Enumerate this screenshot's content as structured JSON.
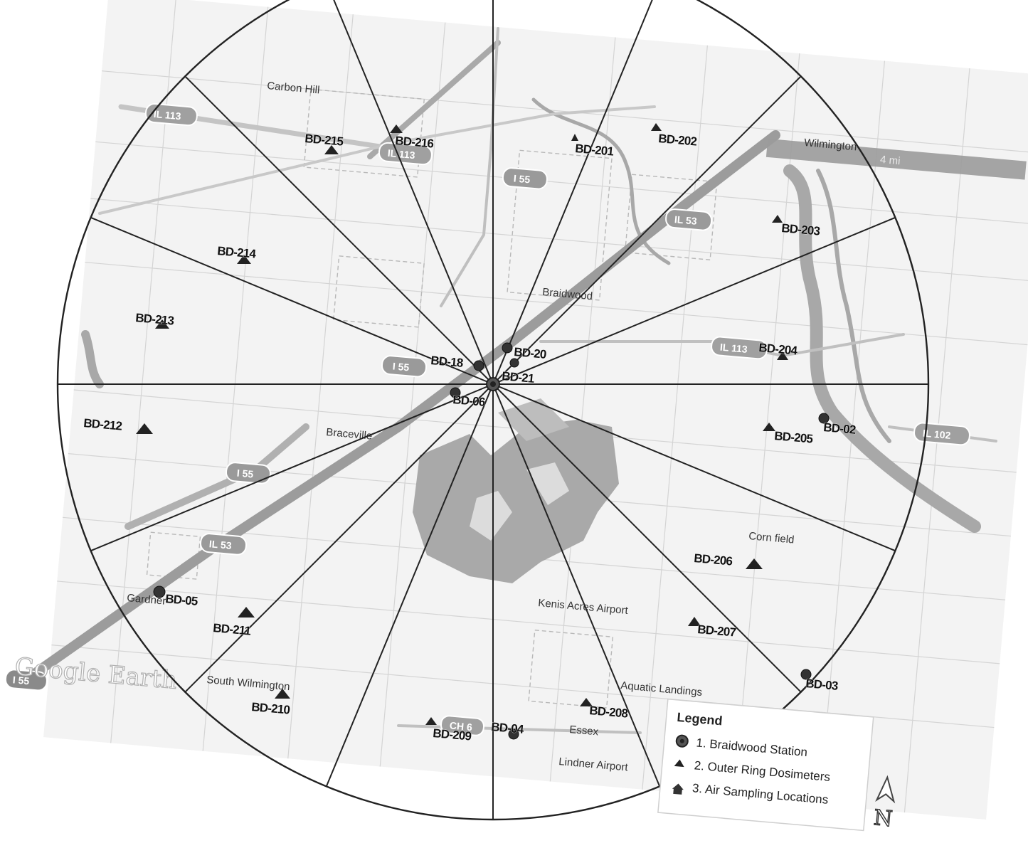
{
  "map": {
    "towns": [
      {
        "name": "Carbon Hill"
      },
      {
        "name": "Braidwood"
      },
      {
        "name": "Braceville"
      },
      {
        "name": "Gardner"
      },
      {
        "name": "South Wilmington"
      },
      {
        "name": "Essex"
      },
      {
        "name": "Wilmington"
      }
    ],
    "roads": [
      {
        "label": "IL 113"
      },
      {
        "label": "IL 113"
      },
      {
        "label": "I 55"
      },
      {
        "label": "IL 53"
      },
      {
        "label": "I 55"
      },
      {
        "label": "IL 113"
      },
      {
        "label": "I 55"
      },
      {
        "label": "IL 53"
      },
      {
        "label": "IL 102"
      },
      {
        "label": "CH 6"
      },
      {
        "label": "I 55"
      }
    ],
    "watermark": "Google Earth",
    "scale_label": "4 mi",
    "minor_labels": [
      "Corn field",
      "Kenis Acres Airport",
      "Aquatic Landings",
      "Lindner Airport"
    ],
    "outer_ring_dosimeters": [
      "BD-201",
      "BD-202",
      "BD-203",
      "BD-204",
      "BD-205",
      "BD-206",
      "BD-207",
      "BD-208",
      "BD-209",
      "BD-210",
      "BD-211",
      "BD-212",
      "BD-213",
      "BD-214",
      "BD-215",
      "BD-216"
    ],
    "air_sampling_locations": [
      "BD-02",
      "BD-03",
      "BD-04",
      "BD-05",
      "BD-06",
      "BD-18",
      "BD-20",
      "BD-21"
    ],
    "sector_count": 16,
    "colors": {
      "road_band": "#9a9a9a",
      "water": "#aaaaaa",
      "grid": "#d2d2d2",
      "lines": "#222222",
      "markers": "#2a2a2a"
    }
  },
  "legend": {
    "title": "Legend",
    "items": [
      {
        "label": "1. Braidwood Station",
        "icon": "station-icon"
      },
      {
        "label": "2. Outer Ring Dosimeters",
        "icon": "triangle-icon"
      },
      {
        "label": "3. Air Sampling Locations",
        "icon": "house-icon"
      }
    ]
  },
  "compass": {
    "label": "N",
    "icon": "north-arrow-icon"
  }
}
